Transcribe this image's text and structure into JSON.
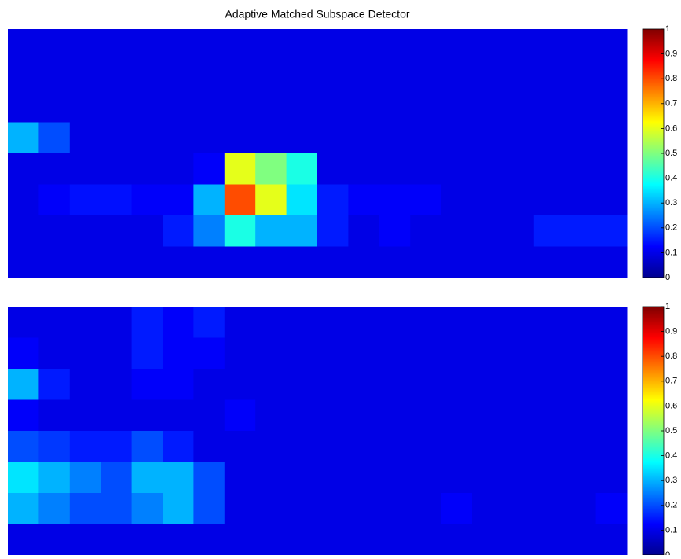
{
  "chart_data": [
    {
      "type": "heatmap",
      "title": "Adaptive Matched Subspace Detector",
      "colormap": "jet",
      "clim": [
        0,
        1
      ],
      "colorbar_ticks": [
        0,
        0.1,
        0.2,
        0.3,
        0.4,
        0.5,
        0.6,
        0.7,
        0.8,
        0.9,
        1
      ],
      "z": [
        [
          0.1,
          0.1,
          0.1,
          0.1,
          0.1,
          0.1,
          0.1,
          0.1,
          0.1,
          0.1,
          0.1,
          0.1,
          0.1,
          0.1,
          0.1,
          0.1,
          0.1,
          0.1,
          0.1,
          0.1
        ],
        [
          0.1,
          0.1,
          0.1,
          0.1,
          0.1,
          0.1,
          0.1,
          0.1,
          0.1,
          0.1,
          0.1,
          0.1,
          0.1,
          0.1,
          0.1,
          0.1,
          0.1,
          0.1,
          0.1,
          0.1
        ],
        [
          0.1,
          0.1,
          0.1,
          0.1,
          0.1,
          0.1,
          0.1,
          0.1,
          0.1,
          0.1,
          0.1,
          0.1,
          0.1,
          0.1,
          0.1,
          0.1,
          0.1,
          0.1,
          0.1,
          0.1
        ],
        [
          0.3,
          0.2,
          0.1,
          0.1,
          0.1,
          0.1,
          0.1,
          0.1,
          0.1,
          0.1,
          0.1,
          0.1,
          0.1,
          0.1,
          0.1,
          0.1,
          0.1,
          0.1,
          0.1,
          0.1
        ],
        [
          0.1,
          0.1,
          0.1,
          0.1,
          0.1,
          0.1,
          0.12,
          0.6,
          0.5,
          0.4,
          0.1,
          0.1,
          0.1,
          0.1,
          0.1,
          0.1,
          0.1,
          0.1,
          0.1,
          0.1
        ],
        [
          0.1,
          0.12,
          0.14,
          0.14,
          0.12,
          0.12,
          0.3,
          0.8,
          0.6,
          0.35,
          0.15,
          0.12,
          0.12,
          0.12,
          0.1,
          0.1,
          0.1,
          0.1,
          0.1,
          0.1
        ],
        [
          0.1,
          0.1,
          0.1,
          0.1,
          0.1,
          0.15,
          0.25,
          0.4,
          0.3,
          0.3,
          0.15,
          0.1,
          0.12,
          0.1,
          0.1,
          0.1,
          0.1,
          0.15,
          0.15,
          0.15
        ],
        [
          0.1,
          0.1,
          0.1,
          0.1,
          0.1,
          0.1,
          0.1,
          0.1,
          0.1,
          0.1,
          0.1,
          0.1,
          0.1,
          0.1,
          0.1,
          0.1,
          0.1,
          0.1,
          0.1,
          0.1
        ]
      ]
    },
    {
      "type": "heatmap",
      "colormap": "jet",
      "clim": [
        0,
        1
      ],
      "colorbar_ticks": [
        0,
        0.1,
        0.2,
        0.3,
        0.4,
        0.5,
        0.6,
        0.7,
        0.8,
        0.9,
        1
      ],
      "z": [
        [
          0.1,
          0.1,
          0.1,
          0.1,
          0.15,
          0.12,
          0.15,
          0.1,
          0.1,
          0.1,
          0.1,
          0.1,
          0.1,
          0.1,
          0.1,
          0.1,
          0.1,
          0.1,
          0.1,
          0.1
        ],
        [
          0.12,
          0.1,
          0.1,
          0.1,
          0.15,
          0.12,
          0.12,
          0.1,
          0.1,
          0.1,
          0.1,
          0.1,
          0.1,
          0.1,
          0.1,
          0.1,
          0.1,
          0.1,
          0.1,
          0.1
        ],
        [
          0.3,
          0.15,
          0.1,
          0.1,
          0.12,
          0.12,
          0.1,
          0.1,
          0.1,
          0.1,
          0.1,
          0.1,
          0.1,
          0.1,
          0.1,
          0.1,
          0.1,
          0.1,
          0.1,
          0.1
        ],
        [
          0.12,
          0.1,
          0.1,
          0.1,
          0.1,
          0.1,
          0.1,
          0.12,
          0.1,
          0.1,
          0.1,
          0.1,
          0.1,
          0.1,
          0.1,
          0.1,
          0.1,
          0.1,
          0.1,
          0.1
        ],
        [
          0.2,
          0.18,
          0.15,
          0.15,
          0.2,
          0.15,
          0.1,
          0.1,
          0.1,
          0.1,
          0.1,
          0.1,
          0.1,
          0.1,
          0.1,
          0.1,
          0.1,
          0.1,
          0.1,
          0.1
        ],
        [
          0.35,
          0.3,
          0.25,
          0.2,
          0.3,
          0.3,
          0.2,
          0.1,
          0.1,
          0.1,
          0.1,
          0.1,
          0.1,
          0.1,
          0.1,
          0.1,
          0.1,
          0.1,
          0.1,
          0.1
        ],
        [
          0.3,
          0.25,
          0.2,
          0.2,
          0.25,
          0.3,
          0.2,
          0.1,
          0.1,
          0.1,
          0.1,
          0.1,
          0.1,
          0.1,
          0.12,
          0.1,
          0.1,
          0.1,
          0.1,
          0.12
        ],
        [
          0.1,
          0.1,
          0.1,
          0.1,
          0.1,
          0.1,
          0.1,
          0.1,
          0.1,
          0.1,
          0.1,
          0.1,
          0.1,
          0.1,
          0.1,
          0.1,
          0.1,
          0.1,
          0.1,
          0.1
        ]
      ]
    }
  ]
}
